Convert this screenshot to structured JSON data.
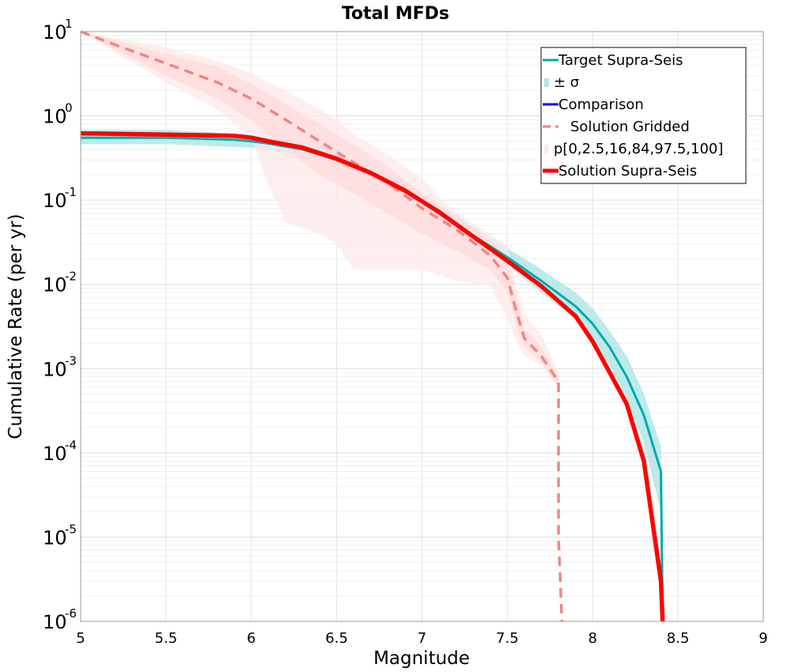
{
  "chart_data": {
    "type": "line",
    "title": "Total MFDs",
    "xlabel": "Magnitude",
    "ylabel": "Cumulative Rate (per yr)",
    "xlim": [
      5,
      9
    ],
    "ylim": [
      1e-06,
      10
    ],
    "yscale": "log",
    "grid": true,
    "legend_position": "top-right",
    "x_ticks": [
      "5",
      "5.5",
      "6",
      "6.5",
      "7",
      "7.5",
      "8",
      "8.5",
      "9"
    ],
    "y_ticks": [
      {
        "base": "10",
        "exp": "-6"
      },
      {
        "base": "10",
        "exp": "-5"
      },
      {
        "base": "10",
        "exp": "-4"
      },
      {
        "base": "10",
        "exp": "-3"
      },
      {
        "base": "10",
        "exp": "-2"
      },
      {
        "base": "10",
        "exp": "-1"
      },
      {
        "base": "10",
        "exp": "0"
      },
      {
        "base": "10",
        "exp": "1"
      }
    ],
    "legend": [
      {
        "label": "Target Supra-Seis",
        "style": "line",
        "color": "#00aaaa"
      },
      {
        "label": "± σ",
        "style": "band",
        "color": "#b2e6e6"
      },
      {
        "label": "Comparison",
        "style": "line",
        "color": "#0000ff"
      },
      {
        "label": "Solution Gridded",
        "style": "dashed",
        "color": "#f08080"
      },
      {
        "label": "p[0,2.5,16,84,97.5,100]",
        "style": "band",
        "color": "#fde8e8"
      },
      {
        "label": "Solution Supra-Seis",
        "style": "thick",
        "color": "#ff0000"
      }
    ],
    "series": [
      {
        "name": "Target Supra-Seis",
        "color": "#00aaaa",
        "x": [
          5.0,
          5.5,
          5.9,
          6.0,
          6.1,
          6.3,
          6.5,
          6.7,
          6.9,
          7.1,
          7.3,
          7.5,
          7.7,
          7.9,
          8.0,
          8.1,
          8.2,
          8.3,
          8.4,
          8.41
        ],
        "y": [
          0.55,
          0.55,
          0.52,
          0.5,
          0.47,
          0.4,
          0.3,
          0.21,
          0.13,
          0.075,
          0.038,
          0.021,
          0.011,
          0.0055,
          0.0034,
          0.0018,
          0.0008,
          0.00028,
          6e-05,
          1e-06
        ]
      },
      {
        "name": "Solution Gridded",
        "color": "#f08080",
        "x": [
          5.0,
          5.2,
          5.5,
          5.8,
          6.0,
          6.2,
          6.4,
          6.6,
          6.8,
          7.0,
          7.2,
          7.4,
          7.5,
          7.55,
          7.6,
          7.7,
          7.8,
          7.8,
          7.82
        ],
        "y": [
          10.0,
          7.0,
          4.2,
          2.5,
          1.6,
          0.9,
          0.5,
          0.28,
          0.16,
          0.08,
          0.045,
          0.022,
          0.012,
          0.005,
          0.0023,
          0.0014,
          0.0007,
          1e-05,
          1e-06
        ]
      },
      {
        "name": "Solution Supra-Seis",
        "color": "#ff0000",
        "x": [
          5.0,
          5.5,
          5.9,
          6.0,
          6.1,
          6.3,
          6.5,
          6.7,
          6.9,
          7.1,
          7.3,
          7.5,
          7.7,
          7.9,
          8.0,
          8.1,
          8.2,
          8.3,
          8.4,
          8.41
        ],
        "y": [
          0.62,
          0.6,
          0.58,
          0.55,
          0.5,
          0.42,
          0.31,
          0.21,
          0.13,
          0.072,
          0.037,
          0.019,
          0.0095,
          0.0042,
          0.0021,
          0.0009,
          0.00038,
          8e-05,
          3e-06,
          1e-06
        ]
      }
    ],
    "bands": [
      {
        "name": "± σ",
        "color": "#b2e6e6",
        "x": [
          5.0,
          5.5,
          6.0,
          6.3,
          6.5,
          6.7,
          6.9,
          7.1,
          7.3,
          7.5,
          7.7,
          7.9,
          8.0,
          8.1,
          8.2,
          8.3,
          8.4
        ],
        "lower": [
          0.46,
          0.46,
          0.42,
          0.34,
          0.26,
          0.18,
          0.11,
          0.062,
          0.031,
          0.017,
          0.008,
          0.0038,
          0.0022,
          0.0011,
          0.00045,
          0.00013,
          2e-05
        ],
        "upper": [
          0.68,
          0.68,
          0.6,
          0.48,
          0.36,
          0.25,
          0.16,
          0.09,
          0.047,
          0.027,
          0.015,
          0.008,
          0.0052,
          0.0028,
          0.0014,
          0.0005,
          0.00012
        ]
      },
      {
        "name": "p[0,2.5,16,84,97.5,100] outer",
        "color": "#fde8e8",
        "x": [
          5.0,
          5.5,
          5.8,
          6.0,
          6.1,
          6.2,
          6.4,
          6.5,
          6.6,
          6.8,
          7.0,
          7.1,
          7.2,
          7.4,
          7.5,
          7.55,
          7.6,
          7.7,
          7.8
        ],
        "lower": [
          10.0,
          2.5,
          1.2,
          0.55,
          0.15,
          0.055,
          0.04,
          0.03,
          0.015,
          0.015,
          0.015,
          0.013,
          0.011,
          0.0095,
          0.004,
          0.0022,
          0.0014,
          0.0011,
          0.0006
        ],
        "upper": [
          10.0,
          6.5,
          4.5,
          3.2,
          2.5,
          2.0,
          1.2,
          0.9,
          0.6,
          0.35,
          0.18,
          0.11,
          0.07,
          0.04,
          0.028,
          0.01,
          0.0045,
          0.0025,
          0.0009
        ]
      },
      {
        "name": "p[0,2.5,16,84,97.5,100] inner",
        "color": "#ffdada",
        "x": [
          5.0,
          5.5,
          5.8,
          6.0,
          6.2,
          6.4,
          6.6,
          6.8,
          7.0,
          7.2,
          7.4,
          7.5,
          7.55,
          7.6,
          7.7,
          7.8
        ],
        "lower": [
          10.0,
          3.0,
          1.6,
          0.9,
          0.4,
          0.2,
          0.12,
          0.07,
          0.04,
          0.025,
          0.015,
          0.008,
          0.0035,
          0.0018,
          0.0012,
          0.0006
        ],
        "upper": [
          10.0,
          5.5,
          3.8,
          2.4,
          1.4,
          0.8,
          0.45,
          0.25,
          0.12,
          0.065,
          0.033,
          0.018,
          0.0075,
          0.003,
          0.0018,
          0.0008
        ]
      }
    ]
  }
}
